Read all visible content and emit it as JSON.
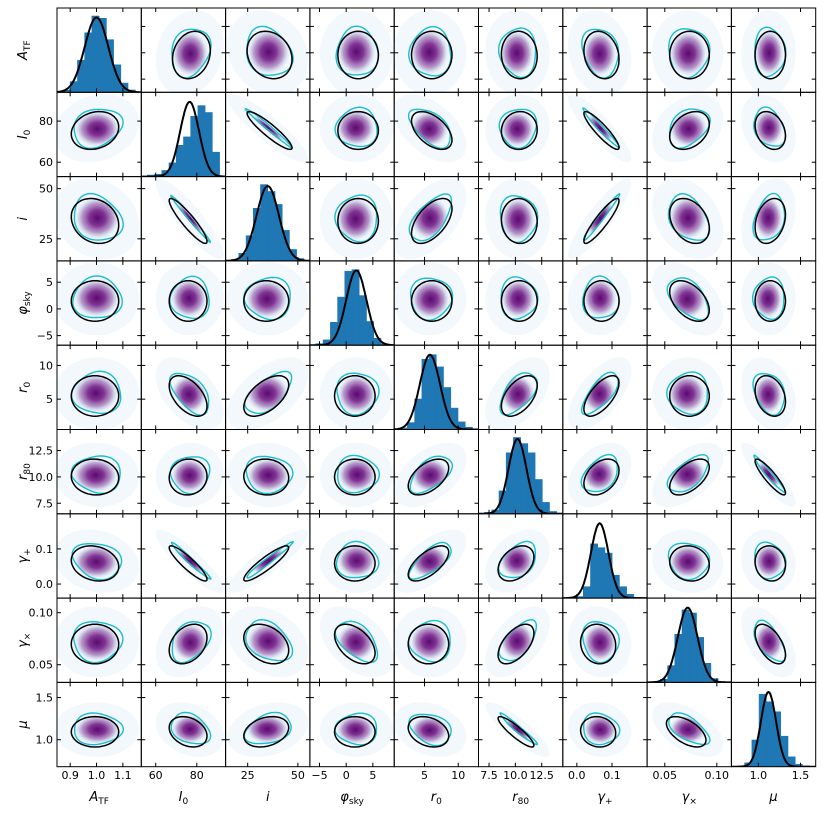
{
  "chart_data": {
    "type": "corner",
    "title": "",
    "parameters": [
      {
        "name": "A_TF",
        "label_main": "A",
        "label_sub": "TF",
        "range": [
          0.85,
          1.17
        ],
        "mean": 1.0,
        "sd": 0.045,
        "ticks": [
          0.9,
          1.0,
          1.1
        ],
        "tick_labels": [
          "0.9",
          "1.0",
          "1.1"
        ],
        "hist": [
          0.03,
          0.14,
          0.42,
          0.78,
          1.0,
          0.97,
          0.69,
          0.36,
          0.12,
          0.03
        ]
      },
      {
        "name": "I_0",
        "label_main": "I",
        "label_sub": "0",
        "range": [
          53,
          94
        ],
        "mean": 76.5,
        "sd": 4.6,
        "ticks": [
          60,
          80
        ],
        "tick_labels": [
          "60",
          "80"
        ],
        "hist": [
          0.02,
          0.03,
          0.08,
          0.18,
          0.41,
          0.52,
          0.79,
          0.93,
          0.84,
          0.32
        ]
      },
      {
        "name": "i",
        "label_main": "i",
        "label_sub": "",
        "range": [
          14,
          56
        ],
        "mean": 35,
        "sd": 5.6,
        "ticks": [
          25,
          50
        ],
        "tick_labels": [
          "25",
          "50"
        ],
        "hist": [
          0.02,
          0.1,
          0.33,
          0.69,
          1.0,
          0.91,
          0.74,
          0.4,
          0.15,
          0.03
        ]
      },
      {
        "name": "phi_sky",
        "label_main": "φ",
        "label_sub": "sky",
        "range": [
          -6.8,
          9
        ],
        "mean": 1.9,
        "sd": 1.9,
        "ticks": [
          -5,
          0,
          5
        ],
        "tick_labels": [
          "−5",
          "0",
          "5"
        ],
        "hist": [
          0.02,
          0.07,
          0.3,
          0.63,
          0.97,
          0.99,
          0.65,
          0.31,
          0.09,
          0.02
        ]
      },
      {
        "name": "r_0",
        "label_main": "r",
        "label_sub": "0",
        "range": [
          0.5,
          13
        ],
        "mean": 5.8,
        "sd": 1.5,
        "ticks": [
          5,
          10
        ],
        "tick_labels": [
          "5",
          "10"
        ],
        "hist": [
          0.02,
          0.09,
          0.4,
          0.92,
          0.98,
          0.82,
          0.55,
          0.28,
          0.1,
          0.03
        ]
      },
      {
        "name": "r_80",
        "label_main": "r",
        "label_sub": "80",
        "range": [
          6.5,
          14.5
        ],
        "mean": 10.2,
        "sd": 0.85,
        "ticks": [
          7.5,
          10.0,
          12.5
        ],
        "tick_labels": [
          "7.5",
          "10.0",
          "12.5"
        ],
        "hist": [
          0.02,
          0.05,
          0.3,
          0.8,
          1.0,
          0.92,
          0.8,
          0.45,
          0.15,
          0.03
        ]
      },
      {
        "name": "gamma_plus",
        "label_main": "γ",
        "label_sub": "+",
        "range": [
          -0.04,
          0.2
        ],
        "mean": 0.065,
        "sd": 0.025,
        "ticks": [
          0.0,
          0.1
        ],
        "tick_labels": [
          "0.0",
          "0.1"
        ],
        "hist": [
          0.01,
          0.02,
          0.15,
          0.71,
          0.66,
          0.59,
          0.3,
          0.15,
          0.05,
          0.01
        ]
      },
      {
        "name": "gamma_cross",
        "label_main": "γ",
        "label_sub": "×",
        "range": [
          0.033,
          0.114
        ],
        "mean": 0.072,
        "sd": 0.0095,
        "ticks": [
          0.05,
          0.1
        ],
        "tick_labels": [
          "0.05",
          "0.10"
        ],
        "hist": [
          0.01,
          0.04,
          0.22,
          0.63,
          0.95,
          0.91,
          0.59,
          0.25,
          0.05,
          0.01
        ]
      },
      {
        "name": "mu",
        "label_main": "μ",
        "label_sub": "",
        "range": [
          0.68,
          1.68
        ],
        "mean": 1.12,
        "sd": 0.09,
        "ticks": [
          1.0,
          1.5
        ],
        "tick_labels": [
          "1.0",
          "1.5"
        ],
        "hist": [
          0.01,
          0.05,
          0.35,
          0.95,
          0.85,
          0.72,
          0.4,
          0.13,
          0.03,
          0.01
        ]
      }
    ],
    "correlations": [
      [
        1,
        0.2,
        -0.2,
        0,
        0,
        -0.05,
        -0.2,
        0,
        0
      ],
      [
        0.2,
        1,
        -0.99,
        0,
        -0.55,
        0.05,
        -0.98,
        0.35,
        -0.3
      ],
      [
        -0.2,
        -0.99,
        1,
        0,
        0.6,
        -0.05,
        0.98,
        -0.35,
        0.3
      ],
      [
        0,
        0,
        0,
        1,
        0,
        0,
        0,
        -0.5,
        0
      ],
      [
        0,
        -0.55,
        0.6,
        0,
        1,
        0.55,
        0.7,
        0,
        -0.3
      ],
      [
        -0.05,
        0.05,
        -0.05,
        0,
        0.55,
        1,
        0.4,
        0.6,
        -0.97
      ],
      [
        -0.2,
        -0.98,
        0.98,
        0,
        0.7,
        0.4,
        1,
        -0.1,
        -0.1
      ],
      [
        0,
        0.35,
        -0.35,
        -0.5,
        0,
        0.6,
        -0.1,
        1,
        -0.6
      ],
      [
        0,
        -0.3,
        0.3,
        0,
        -0.3,
        -0.97,
        -0.1,
        -0.6,
        1
      ]
    ],
    "layers": [
      "posterior 2D density (purple)",
      "cyan contour",
      "black ellipse",
      "1D histogram",
      "black Gaussian curve"
    ],
    "colors": {
      "density_peak": "#5a0a6e",
      "density_low": "#e8f1f8",
      "contour": "#17becf",
      "ellipse": "#000000",
      "hist": "#1f77b4",
      "curve": "#000000"
    },
    "legend": "none",
    "grid": false
  }
}
